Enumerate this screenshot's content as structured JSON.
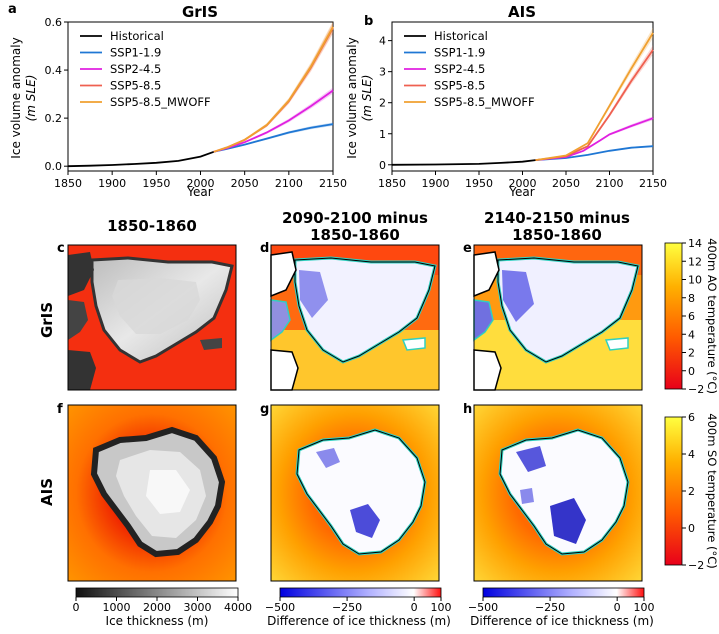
{
  "colors": {
    "historical": "#000000",
    "ssp119": "#1f77d4",
    "ssp245": "#e020e0",
    "ssp585": "#ef6050",
    "ssp585_mwoff": "#f0a030",
    "ocean_warm": "#ffe020",
    "ocean_mid": "#ff6a00",
    "ocean_cold": "#ee1010",
    "coast_outline": "#000000",
    "ice_edge": "#30d0c0"
  },
  "chart_data": [
    {
      "type": "line",
      "panel": "a",
      "title": "GrIS",
      "xlabel": "Year",
      "ylabel": "Ice volume anomaly (m SLE)",
      "xlim": [
        1850,
        2150
      ],
      "ylim": [
        -0.02,
        0.6
      ],
      "xticks": [
        1850,
        1900,
        1950,
        2000,
        2050,
        2100,
        2150
      ],
      "yticks": [
        "0.0",
        "0.2",
        "0.4",
        "0.6"
      ],
      "legend_position": "upper-left",
      "series": [
        {
          "name": "Historical",
          "color_key": "historical",
          "x": [
            1850,
            1875,
            1900,
            1925,
            1950,
            1975,
            2000,
            2015
          ],
          "y": [
            0,
            0.002,
            0.005,
            0.009,
            0.014,
            0.022,
            0.04,
            0.06
          ]
        },
        {
          "name": "SSP1-1.9",
          "color_key": "ssp119",
          "x": [
            2015,
            2030,
            2050,
            2075,
            2100,
            2125,
            2150
          ],
          "y": [
            0.06,
            0.072,
            0.09,
            0.115,
            0.14,
            0.16,
            0.175
          ]
        },
        {
          "name": "SSP2-4.5",
          "color_key": "ssp245",
          "x": [
            2015,
            2030,
            2050,
            2075,
            2100,
            2125,
            2150
          ],
          "y": [
            0.06,
            0.075,
            0.1,
            0.14,
            0.19,
            0.25,
            0.315
          ]
        },
        {
          "name": "SSP5-8.5",
          "color_key": "ssp585",
          "x": [
            2015,
            2030,
            2050,
            2075,
            2100,
            2125,
            2150
          ],
          "y": [
            0.06,
            0.078,
            0.11,
            0.17,
            0.27,
            0.41,
            0.575
          ]
        },
        {
          "name": "SSP5-8.5_MWOFF",
          "color_key": "ssp585_mwoff",
          "x": [
            2015,
            2030,
            2050,
            2075,
            2100,
            2125,
            2150
          ],
          "y": [
            0.06,
            0.078,
            0.11,
            0.172,
            0.273,
            0.415,
            0.58
          ]
        }
      ]
    },
    {
      "type": "line",
      "panel": "b",
      "title": "AIS",
      "xlabel": "Year",
      "ylabel": "Ice volume anomaly (m SLE)",
      "xlim": [
        1850,
        2150
      ],
      "ylim": [
        -0.2,
        4.6
      ],
      "xticks": [
        1850,
        1900,
        1950,
        2000,
        2050,
        2100,
        2150
      ],
      "yticks": [
        "0",
        "1",
        "2",
        "3",
        "4"
      ],
      "legend_position": "upper-left",
      "series": [
        {
          "name": "Historical",
          "color_key": "historical",
          "x": [
            1850,
            1900,
            1950,
            1975,
            2000,
            2015
          ],
          "y": [
            0,
            0.01,
            0.03,
            0.06,
            0.1,
            0.15
          ]
        },
        {
          "name": "SSP1-1.9",
          "color_key": "ssp119",
          "x": [
            2015,
            2050,
            2075,
            2100,
            2125,
            2150
          ],
          "y": [
            0.15,
            0.22,
            0.32,
            0.45,
            0.55,
            0.6
          ]
        },
        {
          "name": "SSP2-4.5",
          "color_key": "ssp245",
          "x": [
            2015,
            2050,
            2070,
            2090,
            2100,
            2125,
            2150
          ],
          "y": [
            0.15,
            0.25,
            0.45,
            0.8,
            0.98,
            1.25,
            1.5
          ]
        },
        {
          "name": "SSP5-8.5",
          "color_key": "ssp585",
          "x": [
            2015,
            2050,
            2075,
            2100,
            2125,
            2150
          ],
          "y": [
            0.15,
            0.28,
            0.6,
            1.6,
            2.7,
            3.7
          ]
        },
        {
          "name": "SSP5-8.5_MWOFF",
          "color_key": "ssp585_mwoff",
          "x": [
            2015,
            2050,
            2075,
            2100,
            2125,
            2150
          ],
          "y": [
            0.15,
            0.3,
            0.7,
            1.9,
            3.1,
            4.25
          ]
        }
      ]
    },
    {
      "type": "heatmap",
      "panels": [
        "c",
        "d",
        "e",
        "f",
        "g",
        "h"
      ],
      "column_titles": [
        "1850-1860",
        "2090-2100 minus",
        "1850-1860",
        "2140-2150 minus",
        "1850-1860"
      ],
      "row_labels": [
        "GrIS",
        "AIS"
      ],
      "colorbars": [
        {
          "label": "400m AO temperature (°C)",
          "ticks": [
            "14",
            "12",
            "10",
            "8",
            "6",
            "4",
            "2",
            "0",
            "−2"
          ],
          "range": [
            -2,
            14
          ]
        },
        {
          "label": "400m SO temperature (°C)",
          "ticks": [
            "6",
            "4",
            "2",
            "0",
            "−2"
          ],
          "range": [
            -2,
            6
          ]
        },
        {
          "label": "Ice thickness (m)",
          "ticks": [
            "0",
            "1000",
            "2000",
            "3000",
            "4000"
          ],
          "range": [
            0,
            4000
          ]
        },
        {
          "label": "Difference of ice thickness (m)",
          "ticks": [
            "−500",
            "−250",
            "0",
            "100"
          ],
          "range": [
            -500,
            100
          ]
        },
        {
          "label": "Difference of ice thickness (m)",
          "ticks": [
            "−500",
            "−250",
            "0",
            "100"
          ],
          "range": [
            -500,
            100
          ]
        }
      ]
    }
  ],
  "labels": {
    "a": "a",
    "b": "b",
    "c": "c",
    "d": "d",
    "e": "e",
    "f": "f",
    "g": "g",
    "h": "h",
    "title_a": "GrIS",
    "title_b": "AIS",
    "ylabel_a1": "Ice volume anomaly",
    "ylabel_a2": "(m SLE)",
    "ylabel_b1": "Ice volume anomaly",
    "ylabel_b2": "(m SLE)",
    "xlabel": "Year",
    "col1": "1850-1860",
    "col2a": "2090-2100 minus",
    "col2b": "1850-1860",
    "col3a": "2140-2150 minus",
    "col3b": "1850-1860",
    "row1": "GrIS",
    "row2": "AIS",
    "cb_ao": "400m AO temperature (°C)",
    "cb_so": "400m SO temperature (°C)",
    "cb_thick": "Ice thickness (m)",
    "cb_diff1": "Difference of ice thickness (m)",
    "cb_diff2": "Difference of ice thickness (m)"
  }
}
